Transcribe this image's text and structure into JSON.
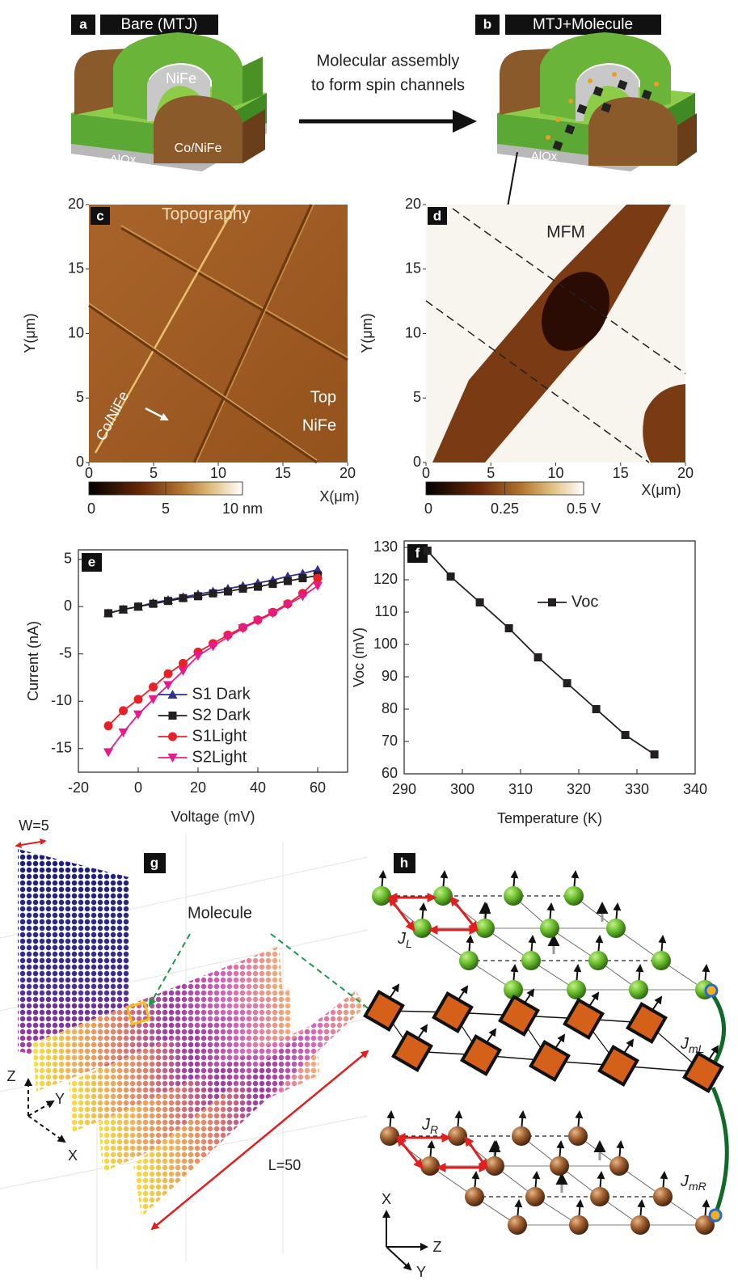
{
  "panels": {
    "a": {
      "label": "a",
      "title": "Bare  (MTJ)",
      "top_layer": "NiFe",
      "bottom_layer": "Co/NiFe",
      "barrier": "AlOx"
    },
    "arrow_text": [
      "Molecular assembly",
      "to form spin channels"
    ],
    "b": {
      "label": "b",
      "title": "MTJ+Molecule",
      "barrier": "AlOx"
    },
    "c": {
      "label": "c",
      "title": "Topography",
      "annotations": [
        "Co/NiFe",
        "Top",
        "NiFe"
      ],
      "x_label": "X(μm)",
      "y_label": "Y(μm)",
      "xlim": [
        0,
        20
      ],
      "ylim": [
        0,
        20
      ],
      "xticks": [
        0,
        5,
        10,
        15,
        20
      ],
      "yticks": [
        0,
        5,
        10,
        15,
        20
      ],
      "colorbar": {
        "lim": [
          0,
          10
        ],
        "ticks": [
          0,
          5,
          {
            "value": 10,
            "label": "10 nm"
          }
        ]
      }
    },
    "d": {
      "label": "d",
      "title": "MFM",
      "x_label": "X(μm)",
      "y_label": "Y(μm)",
      "xlim": [
        0,
        20
      ],
      "ylim": [
        0,
        20
      ],
      "xticks": [
        0,
        5,
        10,
        15,
        20
      ],
      "yticks": [
        0,
        5,
        10,
        15,
        20
      ],
      "colorbar": {
        "lim": [
          0,
          0.5
        ],
        "ticks": [
          0,
          0.25,
          {
            "value": 0.5,
            "label": "0.5 V"
          }
        ]
      }
    },
    "g": {
      "label": "g",
      "width_label": "W=5",
      "molecule_label": "Molecule",
      "length_label": "L=50",
      "axes": [
        "Z",
        "Y",
        "X"
      ]
    },
    "h": {
      "label": "h",
      "couplings": [
        {
          "symbol": "J",
          "sub": "L"
        },
        {
          "symbol": "J",
          "sub": "mL"
        },
        {
          "symbol": "J",
          "sub": "R"
        },
        {
          "symbol": "J",
          "sub": "mR"
        }
      ],
      "axes": [
        "X",
        "Z",
        "Y"
      ]
    }
  },
  "chart_data": [
    {
      "type": "line",
      "panel_label": "e",
      "x_label": "Voltage (mV)",
      "y_label": "Current (nA)",
      "x": [
        -10,
        -5,
        0,
        5,
        10,
        15,
        20,
        25,
        30,
        35,
        40,
        45,
        50,
        55,
        60
      ],
      "xlim": [
        -20,
        70
      ],
      "ylim": [
        -17.5,
        6
      ],
      "xticks": [
        -20,
        0,
        20,
        40,
        60
      ],
      "yticks": [
        -15,
        -10,
        -5,
        0,
        5
      ],
      "legend": "lower center",
      "series": [
        {
          "name": "S1 Dark",
          "color": "#2e3192",
          "marker": "triangle-up",
          "values": [
            -0.7,
            -0.3,
            0,
            0.4,
            0.7,
            1.0,
            1.3,
            1.6,
            1.9,
            2.2,
            2.5,
            2.8,
            3.2,
            3.5,
            3.9
          ]
        },
        {
          "name": "S2 Dark",
          "color": "#231f20",
          "marker": "square",
          "values": [
            -0.7,
            -0.3,
            0,
            0.3,
            0.6,
            0.9,
            1.1,
            1.4,
            1.6,
            1.9,
            2.1,
            2.4,
            2.7,
            3.0,
            3.3
          ]
        },
        {
          "name": "S1Light",
          "color": "#e8202a",
          "marker": "circle",
          "values": [
            -12.6,
            -11.0,
            -9.8,
            -8.5,
            -7.1,
            -6.0,
            -4.8,
            -3.9,
            -3.0,
            -2.2,
            -1.4,
            -0.6,
            0.3,
            1.4,
            3.0
          ]
        },
        {
          "name": "S2Light",
          "color": "#e8198b",
          "marker": "triangle-down",
          "values": [
            -15.4,
            -13.3,
            -11.4,
            -9.8,
            -8.3,
            -6.8,
            -5.2,
            -4.2,
            -3.2,
            -2.3,
            -1.5,
            -0.7,
            0.2,
            1.1,
            2.2
          ]
        }
      ]
    },
    {
      "type": "line",
      "panel_label": "f",
      "x_label": "Temperature (K)",
      "y_label": "Voc (mV)",
      "x": [
        294,
        298,
        303,
        308,
        313,
        318,
        323,
        328,
        333
      ],
      "xlim": [
        290,
        340
      ],
      "ylim": [
        60,
        132
      ],
      "xticks": [
        290,
        300,
        310,
        320,
        330,
        340
      ],
      "yticks": [
        60,
        70,
        80,
        90,
        100,
        110,
        120,
        130
      ],
      "legend": "upper right",
      "series": [
        {
          "name": "Voc",
          "color": "#231f20",
          "marker": "square",
          "values": [
            129,
            121,
            113,
            105,
            96,
            88,
            80,
            72,
            66
          ]
        }
      ]
    }
  ]
}
